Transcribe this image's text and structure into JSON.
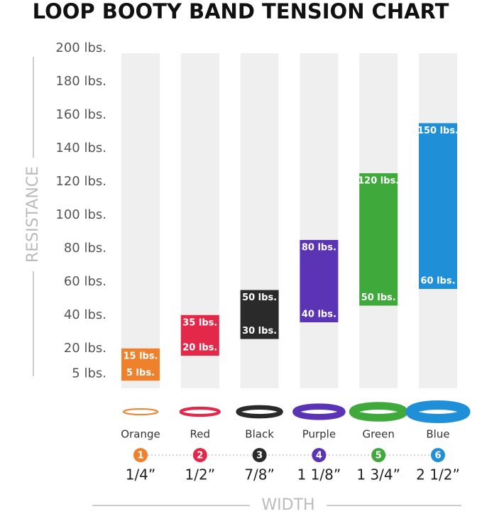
{
  "chart_data": {
    "type": "bar",
    "title": "LOOP BOOTY BAND TENSION CHART",
    "y_label": "RESISTANCE",
    "x_label": "WIDTH",
    "categories": [
      "Orange",
      "Red",
      "Black",
      "Purple",
      "Green",
      "Blue"
    ],
    "colors": [
      "#f0812c",
      "#e4284a",
      "#2a2a2a",
      "#5b34b6",
      "#3fa93b",
      "#1f8fd8"
    ],
    "values": [
      [
        5,
        15
      ],
      [
        20,
        35
      ],
      [
        30,
        50
      ],
      [
        40,
        80
      ],
      [
        50,
        120
      ],
      [
        60,
        150
      ]
    ],
    "value_labels": [
      [
        "5 lbs.",
        "15 lbs."
      ],
      [
        "20 lbs.",
        "35 lbs."
      ],
      [
        "30 lbs.",
        "50 lbs."
      ],
      [
        "40 lbs.",
        "80 lbs."
      ],
      [
        "50 lbs.",
        "120 lbs."
      ],
      [
        "60 lbs.",
        "150 lbs."
      ]
    ],
    "numbers": [
      1,
      2,
      3,
      4,
      5,
      6
    ],
    "widths": [
      "1/4”",
      "1/2”",
      "7/8”",
      "1 1/8”",
      "1 3/4”",
      "2 1/2”"
    ],
    "ylim": [
      0,
      200
    ],
    "yticks": [
      {
        "value": 5,
        "label": "5 lbs."
      },
      {
        "value": 20,
        "label": "20 lbs."
      },
      {
        "value": 40,
        "label": "40 lbs."
      },
      {
        "value": 60,
        "label": "60 lbs."
      },
      {
        "value": 80,
        "label": "80 lbs."
      },
      {
        "value": 100,
        "label": "100 lbs."
      },
      {
        "value": 120,
        "label": "120 lbs."
      },
      {
        "value": 140,
        "label": "140 lbs."
      },
      {
        "value": 160,
        "label": "160 lbs."
      },
      {
        "value": 180,
        "label": "180 lbs."
      },
      {
        "value": 200,
        "label": "200 lbs."
      }
    ]
  }
}
